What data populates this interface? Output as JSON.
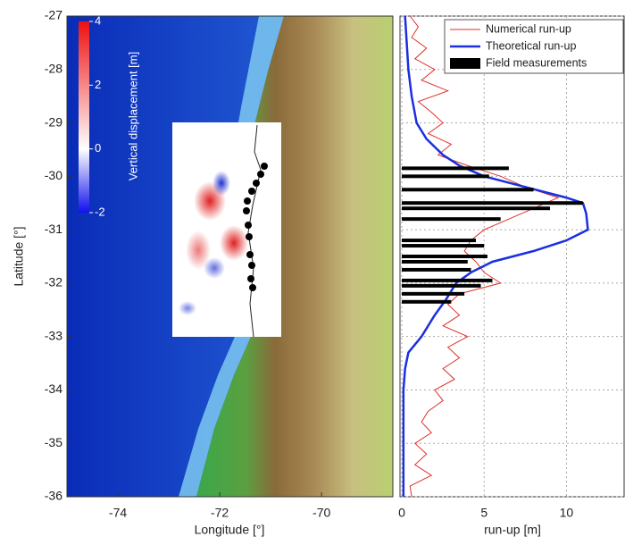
{
  "chart_data": [
    {
      "type": "map",
      "xlabel": "Longitude [°]",
      "ylabel": "Latitude [°]",
      "xlim": [
        -75,
        -68.6
      ],
      "xticks": [
        -74,
        -72,
        -70
      ],
      "ylim": [
        -36,
        -27
      ],
      "yticks": [
        -36,
        -35,
        -34,
        -33,
        -32,
        -31,
        -30,
        -29,
        -28,
        -27
      ],
      "colorbar": {
        "label": "Vertical displacement [m]",
        "lim": [
          -2,
          4
        ],
        "ticks": [
          -2,
          0,
          2,
          4
        ]
      }
    },
    {
      "type": "runup",
      "xlabel": "run-up [m]",
      "xlim": [
        0,
        13.5
      ],
      "xticks": [
        0,
        5,
        10
      ],
      "ylim": [
        -36,
        -27
      ],
      "yticks": [
        -36,
        -35,
        -34,
        -33,
        -32,
        -31,
        -30,
        -29,
        -28,
        -27
      ],
      "grid": true,
      "legend": "upper right",
      "series": [
        {
          "name": "Numerical run-up",
          "kind": "line",
          "color": "#e0302a",
          "lat": [
            -27,
            -27.2,
            -27.4,
            -27.6,
            -27.8,
            -28,
            -28.2,
            -28.4,
            -28.6,
            -28.8,
            -29,
            -29.2,
            -29.4,
            -29.6,
            -29.8,
            -30,
            -30.2,
            -30.4,
            -30.6,
            -30.8,
            -31,
            -31.2,
            -31.4,
            -31.6,
            -31.8,
            -32,
            -32.2,
            -32.4,
            -32.6,
            -32.8,
            -33,
            -33.2,
            -33.4,
            -33.6,
            -33.8,
            -34,
            -34.2,
            -34.4,
            -34.6,
            -34.8,
            -35,
            -35.2,
            -35.4,
            -35.6,
            -35.8,
            -36
          ],
          "values": [
            0.5,
            1.0,
            0.6,
            1.5,
            0.8,
            2.0,
            1.2,
            2.8,
            1.0,
            1.8,
            2.5,
            1.6,
            3.0,
            2.2,
            4.0,
            6.0,
            7.5,
            9.5,
            8.0,
            6.5,
            5.0,
            4.2,
            3.8,
            4.5,
            5.0,
            6.0,
            3.5,
            2.8,
            3.5,
            2.5,
            4.0,
            2.8,
            3.5,
            2.5,
            3.2,
            2.0,
            2.5,
            1.6,
            1.2,
            1.8,
            0.8,
            1.5,
            0.8,
            1.8,
            0.5,
            0.6
          ]
        },
        {
          "name": "Theoretical run-up",
          "kind": "line",
          "color": "#1a2fe0",
          "lat": [
            -27,
            -28,
            -28.5,
            -29,
            -29.3,
            -29.6,
            -29.8,
            -30,
            -30.2,
            -30.4,
            -30.5,
            -30.7,
            -31,
            -31.2,
            -31.4,
            -31.6,
            -31.8,
            -32,
            -32.3,
            -32.6,
            -33,
            -33.3,
            -33.6,
            -34,
            -35,
            -36
          ],
          "values": [
            0.2,
            0.4,
            0.6,
            0.9,
            1.5,
            2.5,
            3.5,
            5.0,
            7.5,
            10.0,
            11.0,
            11.2,
            11.3,
            10.0,
            8.0,
            5.5,
            4.2,
            3.3,
            2.7,
            2.0,
            1.2,
            0.4,
            0.2,
            0.1,
            0.1,
            0.1
          ]
        },
        {
          "name": "Field measurements",
          "kind": "bar",
          "color": "#000000",
          "lat": [
            -29.85,
            -30.0,
            -30.25,
            -30.5,
            -30.6,
            -30.8,
            -31.2,
            -31.3,
            -31.5,
            -31.6,
            -31.75,
            -31.95,
            -32.05,
            -32.2,
            -32.35
          ],
          "values": [
            6.5,
            5.3,
            8.0,
            11.0,
            9.0,
            6.0,
            4.5,
            5.0,
            5.2,
            4.0,
            4.2,
            5.5,
            4.8,
            3.8,
            3.0
          ]
        }
      ]
    }
  ]
}
